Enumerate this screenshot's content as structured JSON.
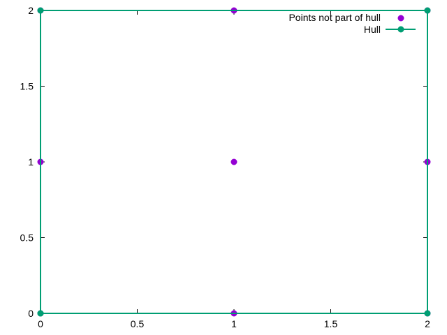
{
  "chart_data": {
    "type": "scatter",
    "xlim": [
      0,
      2
    ],
    "ylim": [
      0,
      2
    ],
    "x_ticks": [
      "0",
      "0.5",
      "1",
      "1.5",
      "2"
    ],
    "y_ticks": [
      "0",
      "0.5",
      "1",
      "1.5",
      "2"
    ],
    "grid": false,
    "legend_position": "top-right",
    "series": [
      {
        "name": "Points not part of hull",
        "kind": "points",
        "color": "#9400d3",
        "points": [
          [
            0,
            0
          ],
          [
            1,
            0
          ],
          [
            2,
            0
          ],
          [
            0,
            1
          ],
          [
            1,
            1
          ],
          [
            2,
            1
          ],
          [
            0,
            2
          ],
          [
            1,
            2
          ],
          [
            2,
            2
          ]
        ]
      },
      {
        "name": "Hull",
        "kind": "linespoints",
        "color": "#009e73",
        "points": [
          [
            0,
            0
          ],
          [
            2,
            0
          ],
          [
            2,
            2
          ],
          [
            0,
            2
          ],
          [
            0,
            0
          ]
        ]
      }
    ]
  }
}
